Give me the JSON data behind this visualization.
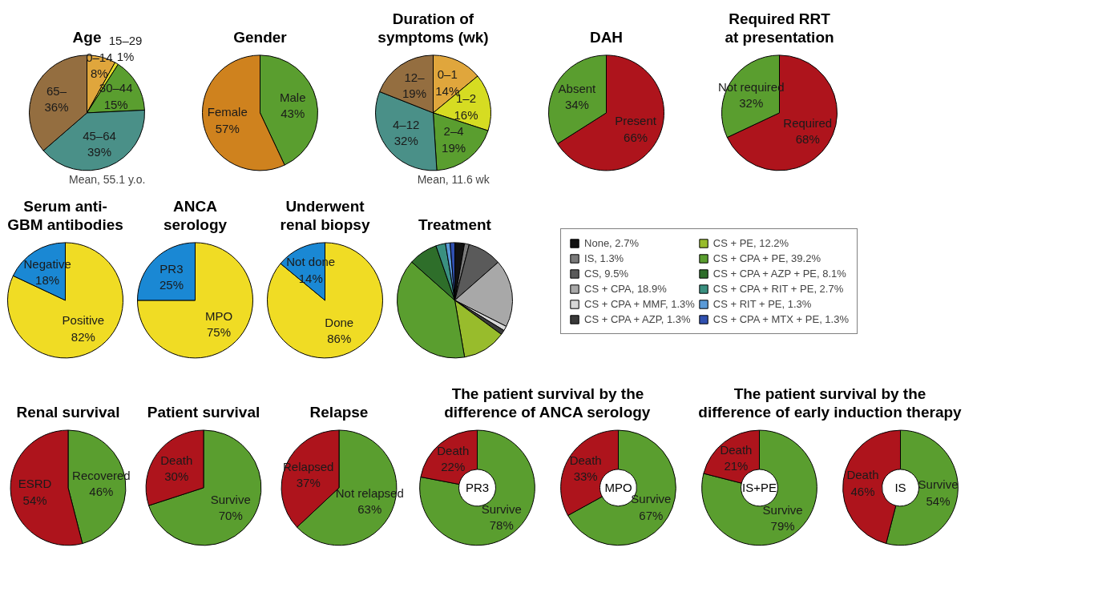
{
  "chart_data": [
    {
      "type": "pie",
      "title": "Age",
      "categories": [
        "0–14",
        "15–29",
        "30–44",
        "45–64",
        "65–"
      ],
      "values": [
        8,
        1,
        15,
        39,
        36
      ],
      "value_labels": [
        "8%",
        "1%",
        "15%",
        "39%",
        "36%"
      ],
      "colors": [
        "#e0a63c",
        "#e4dc2a",
        "#5a9e2f",
        "#4a9088",
        "#946e40"
      ],
      "data_labels": true,
      "annotations": [
        "Mean, 55.1 y.o."
      ]
    },
    {
      "type": "pie",
      "title": "Gender",
      "categories": [
        "Male",
        "Female"
      ],
      "values": [
        43,
        57
      ],
      "value_labels": [
        "43%",
        "57%"
      ],
      "colors": [
        "#5a9e2f",
        "#cf821e"
      ],
      "data_labels": true
    },
    {
      "type": "pie",
      "title": "Duration of\nsymptoms (wk)",
      "categories": [
        "0–1",
        "1–2",
        "2–4",
        "4–12",
        "12–"
      ],
      "values": [
        14,
        16,
        19,
        32,
        19
      ],
      "value_labels": [
        "14%",
        "16%",
        "19%",
        "32%",
        "19%"
      ],
      "colors": [
        "#e0a63c",
        "#d6dc22",
        "#5a9e2f",
        "#4a9088",
        "#946e40"
      ],
      "data_labels": true,
      "annotations": [
        "Mean, 11.6 wk"
      ]
    },
    {
      "type": "pie",
      "title": "DAH",
      "categories": [
        "Present",
        "Absent"
      ],
      "values": [
        66,
        34
      ],
      "value_labels": [
        "66%",
        "34%"
      ],
      "colors": [
        "#ae141c",
        "#5a9e2f"
      ],
      "data_labels": true
    },
    {
      "type": "pie",
      "title": "Required RRT\nat presentation",
      "categories": [
        "Required",
        "Not required"
      ],
      "values": [
        68,
        32
      ],
      "value_labels": [
        "68%",
        "32%"
      ],
      "colors": [
        "#ae141c",
        "#5a9e2f"
      ],
      "data_labels": true
    },
    {
      "type": "pie",
      "title": "Serum anti-\nGBM antibodies",
      "categories": [
        "Positive",
        "Negative"
      ],
      "values": [
        82,
        18
      ],
      "value_labels": [
        "82%",
        "18%"
      ],
      "colors": [
        "#f0dc24",
        "#1a88d4"
      ],
      "data_labels": true
    },
    {
      "type": "pie",
      "title": "ANCA\nserology",
      "categories": [
        "MPO",
        "PR3"
      ],
      "values": [
        75,
        25
      ],
      "value_labels": [
        "75%",
        "25%"
      ],
      "colors": [
        "#f0dc24",
        "#1a88d4"
      ],
      "data_labels": true
    },
    {
      "type": "pie",
      "title": "Underwent\nrenal biopsy",
      "categories": [
        "Done",
        "Not done"
      ],
      "values": [
        86,
        14
      ],
      "value_labels": [
        "86%",
        "14%"
      ],
      "colors": [
        "#f0dc24",
        "#1a88d4"
      ],
      "data_labels": true
    },
    {
      "type": "pie",
      "title": "Treatment",
      "categories": [
        "None, 2.7%",
        "IS, 1.3%",
        "CS, 9.5%",
        "CS + CPA, 18.9%",
        "CS + CPA + MMF, 1.3%",
        "CS + CPA + AZP, 1.3%",
        "CS + PE, 12.2%",
        "CS + CPA + PE, 39.2%",
        "CS + CPA + AZP + PE, 8.1%",
        "CS + CPA + RIT + PE, 2.7%",
        "CS + RIT + PE, 1.3%",
        "CS + CPA + MTX + PE, 1.3%"
      ],
      "values": [
        2.7,
        1.3,
        9.5,
        18.9,
        1.3,
        1.3,
        12.2,
        39.2,
        8.1,
        2.7,
        1.3,
        1.3
      ],
      "colors": [
        "#111111",
        "#7a7a7a",
        "#5a5a5a",
        "#a8a8a8",
        "#d8d8d8",
        "#3a3a3a",
        "#98bc2c",
        "#5a9e2f",
        "#2e6e2a",
        "#3a9080",
        "#5a9ad8",
        "#3050b0"
      ],
      "legend": "right"
    },
    {
      "type": "pie",
      "title": "Renal survival",
      "categories": [
        "Recovered",
        "ESRD"
      ],
      "values": [
        46,
        54
      ],
      "value_labels": [
        "46%",
        "54%"
      ],
      "colors": [
        "#5a9e2f",
        "#ae141c"
      ],
      "data_labels": true
    },
    {
      "type": "pie",
      "title": "Patient survival",
      "categories": [
        "Survive",
        "Death"
      ],
      "values": [
        70,
        30
      ],
      "value_labels": [
        "70%",
        "30%"
      ],
      "colors": [
        "#5a9e2f",
        "#ae141c"
      ],
      "data_labels": true
    },
    {
      "type": "pie",
      "title": "Relapse",
      "categories": [
        "Not relapsed",
        "Relapsed"
      ],
      "values": [
        63,
        37
      ],
      "value_labels": [
        "63%",
        "37%"
      ],
      "colors": [
        "#5a9e2f",
        "#ae141c"
      ],
      "data_labels": true
    },
    {
      "type": "donut",
      "title": "The patient survival by the\ndifference of ANCA serology",
      "categories": [
        "Survive",
        "Death"
      ],
      "values": [
        78,
        22
      ],
      "value_labels": [
        "78%",
        "22%"
      ],
      "colors": [
        "#5a9e2f",
        "#ae141c"
      ],
      "data_labels": true,
      "annotations": [
        "PR3"
      ]
    },
    {
      "type": "donut",
      "categories": [
        "Survive",
        "Death"
      ],
      "values": [
        67,
        33
      ],
      "value_labels": [
        "67%",
        "33%"
      ],
      "colors": [
        "#5a9e2f",
        "#ae141c"
      ],
      "data_labels": true,
      "annotations": [
        "MPO"
      ]
    },
    {
      "type": "donut",
      "title": "The patient survival by the\ndifference of early induction therapy",
      "categories": [
        "Survive",
        "Death"
      ],
      "values": [
        79,
        21
      ],
      "value_labels": [
        "79%",
        "21%"
      ],
      "colors": [
        "#5a9e2f",
        "#ae141c"
      ],
      "data_labels": true,
      "annotations": [
        "IS+PE"
      ]
    },
    {
      "type": "donut",
      "categories": [
        "Survive",
        "Death"
      ],
      "values": [
        54,
        46
      ],
      "value_labels": [
        "54%",
        "46%"
      ],
      "colors": [
        "#5a9e2f",
        "#ae141c"
      ],
      "data_labels": true,
      "annotations": [
        "IS"
      ]
    }
  ]
}
